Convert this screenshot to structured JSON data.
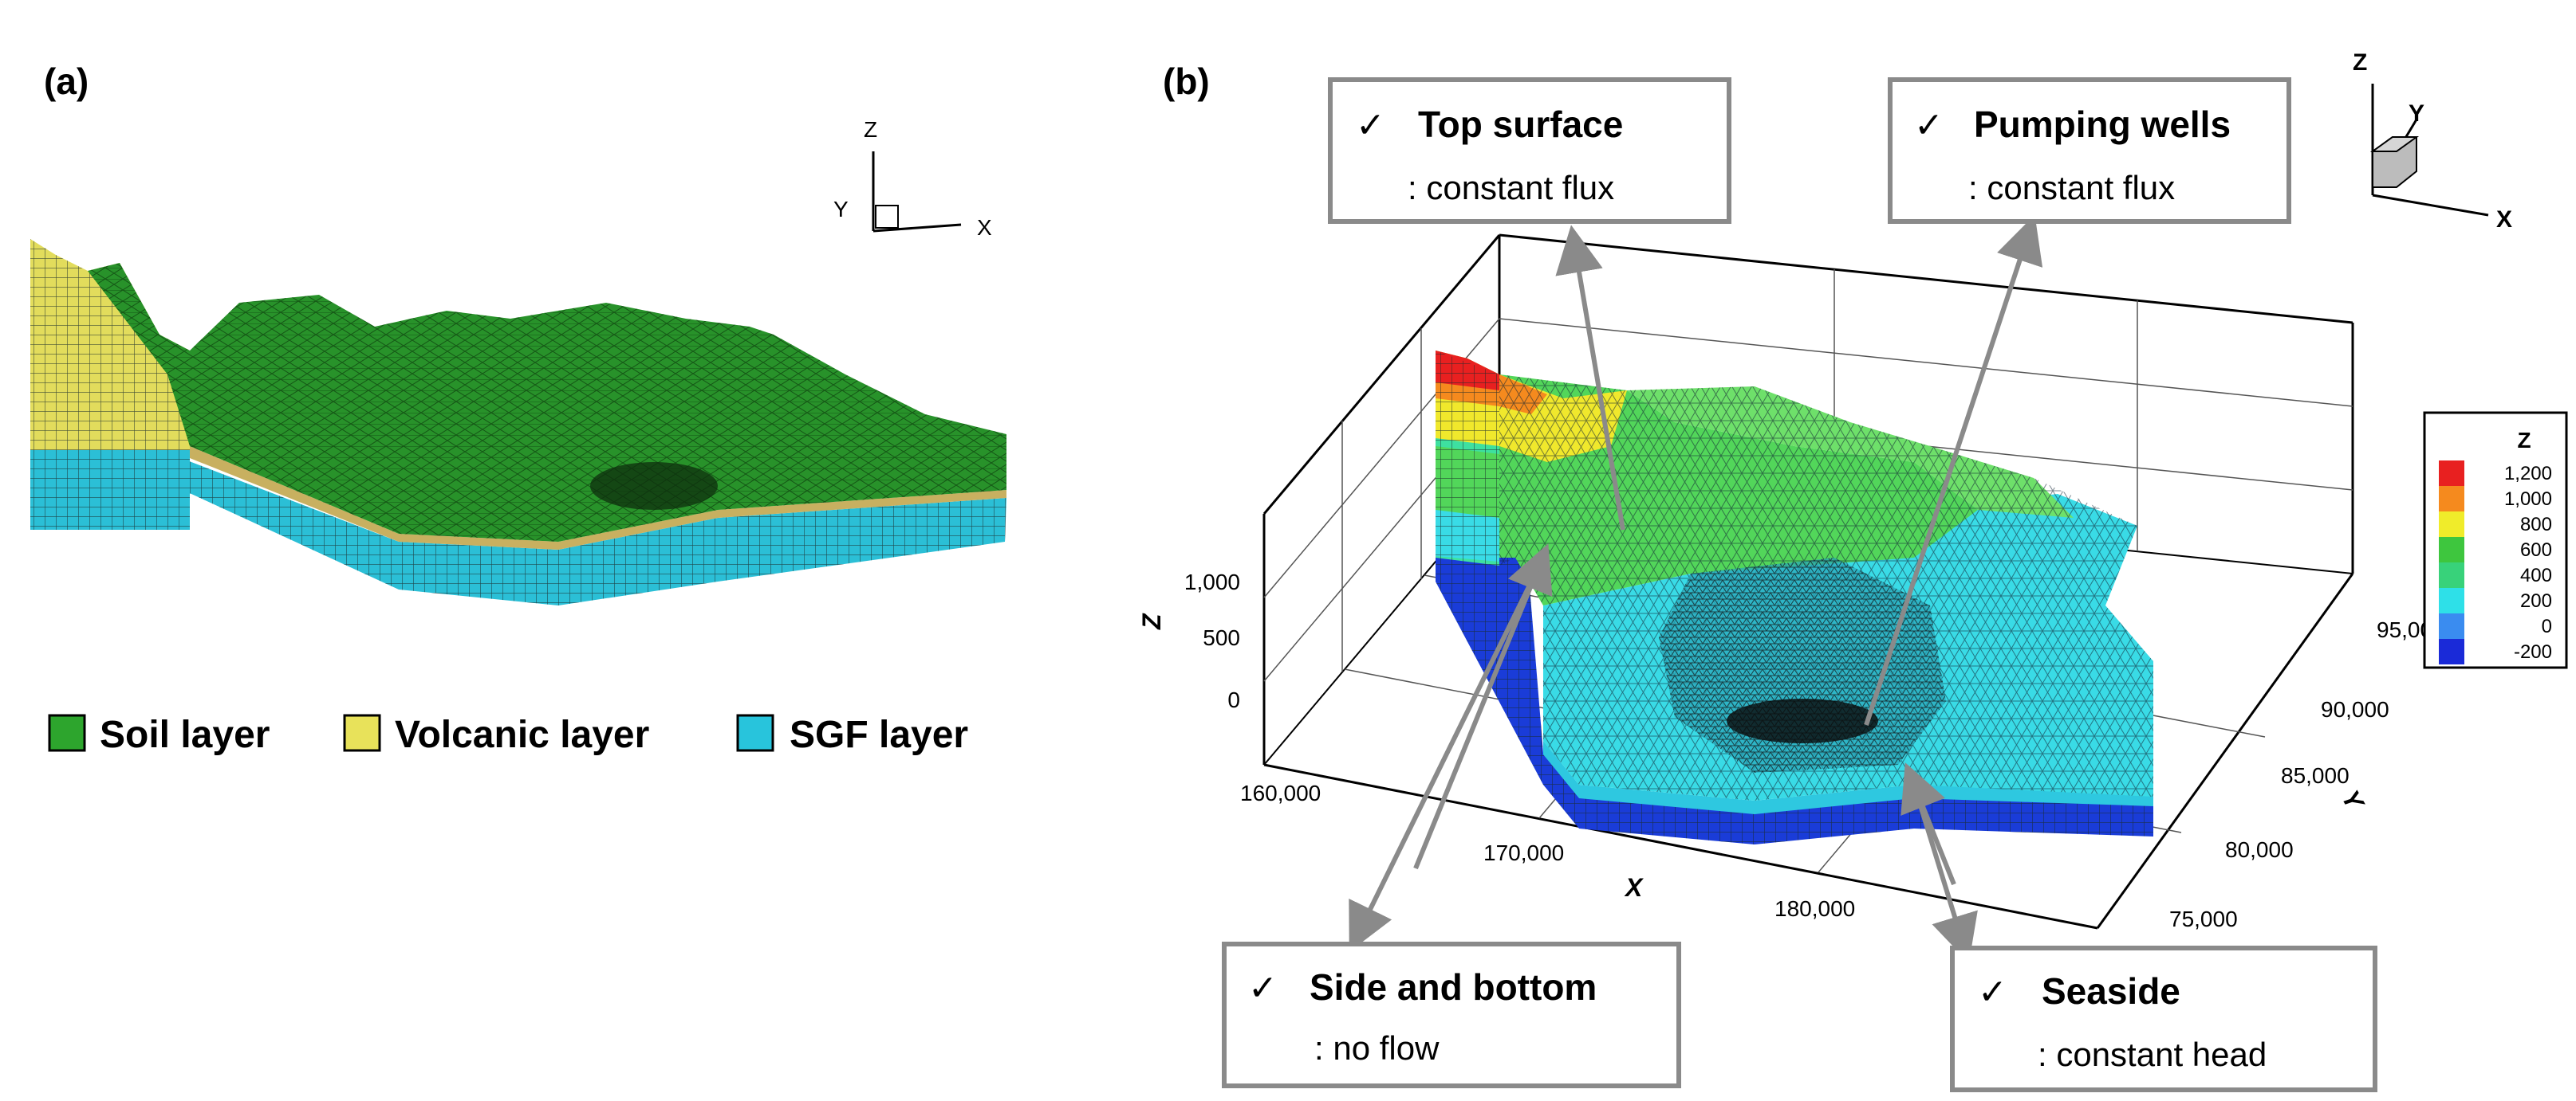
{
  "panel_a": {
    "label": "(a)",
    "axes": {
      "z": "Z",
      "y": "Y",
      "x": "X"
    },
    "legend": [
      {
        "label": "Soil layer",
        "color": "#2da52d"
      },
      {
        "label": "Volcanic layer",
        "color": "#e8e25a"
      },
      {
        "label": "SGF layer",
        "color": "#28c4dc"
      }
    ]
  },
  "panel_b": {
    "label": "(b)",
    "axes": {
      "z": "Z",
      "y": "Y",
      "x": "X"
    },
    "z_axis": {
      "title": "Z",
      "ticks": [
        "1,000",
        "500",
        "0"
      ]
    },
    "x_axis": {
      "title": "X",
      "ticks": [
        "160,000",
        "170,000",
        "180,000"
      ]
    },
    "y_axis": {
      "title": "Y",
      "ticks": [
        "95,000",
        "90,000",
        "85,000",
        "80,000",
        "75,000"
      ]
    },
    "colorbar": {
      "title": "Z",
      "levels": [
        {
          "label": "1,200",
          "color": "#e82020"
        },
        {
          "label": "1,000",
          "color": "#f58a1e"
        },
        {
          "label": "800",
          "color": "#f0ec2a"
        },
        {
          "label": "600",
          "color": "#3ec63e"
        },
        {
          "label": "400",
          "color": "#38d27a"
        },
        {
          "label": "200",
          "color": "#2ee0e8"
        },
        {
          "label": "0",
          "color": "#3a8cf0"
        },
        {
          "label": "-200",
          "color": "#1a2ad8"
        }
      ]
    },
    "callouts": {
      "top_surface": {
        "check": "✓",
        "title": "Top surface",
        "detail": ": constant flux"
      },
      "pumping_wells": {
        "check": "✓",
        "title": "Pumping wells",
        "detail": ": constant flux"
      },
      "side_bottom": {
        "check": "✓",
        "title": "Side and bottom",
        "detail": ": no flow"
      },
      "seaside": {
        "check": "✓",
        "title": "Seaside",
        "detail": ": constant head"
      }
    }
  }
}
